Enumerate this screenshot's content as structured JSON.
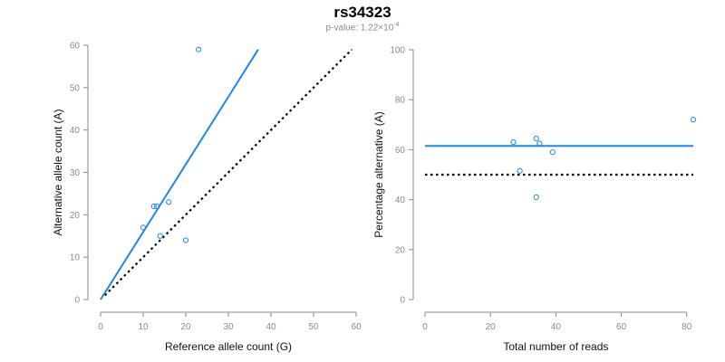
{
  "title": "rs34323",
  "subtitle": {
    "prefix": "p-value: 1.22×10",
    "exponent": "-4"
  },
  "colors": {
    "fit_line": "#1f87e5",
    "point": "#1f87e5",
    "reference_line": "#000000",
    "axis": "#8a8a8a"
  },
  "chart_data": [
    {
      "type": "scatter",
      "xlabel": "Reference allele count (G)",
      "ylabel": "Alternative allele count (A)",
      "xlim": [
        0,
        60
      ],
      "ylim": [
        0,
        60
      ],
      "xticks": [
        0,
        10,
        20,
        30,
        40,
        50,
        60
      ],
      "yticks": [
        0,
        10,
        20,
        30,
        40,
        50,
        60
      ],
      "points": [
        {
          "x": 10,
          "y": 17
        },
        {
          "x": 12.5,
          "y": 22
        },
        {
          "x": 13.2,
          "y": 22
        },
        {
          "x": 14,
          "y": 15
        },
        {
          "x": 16,
          "y": 23
        },
        {
          "x": 20,
          "y": 14
        },
        {
          "x": 23,
          "y": 59
        }
      ],
      "fit_line": {
        "x": [
          0,
          37
        ],
        "y": [
          0,
          59
        ]
      },
      "reference_line": {
        "x": [
          1,
          59
        ],
        "y": [
          1,
          59
        ],
        "style": "dotted"
      }
    },
    {
      "type": "scatter",
      "xlabel": "Total number of reads",
      "ylabel": "Percentage alternative (A)",
      "xlim": [
        0,
        82
      ],
      "ylim": [
        0,
        100
      ],
      "xticks": [
        0,
        20,
        40,
        60,
        80
      ],
      "yticks": [
        0,
        20,
        40,
        60,
        80,
        100
      ],
      "points": [
        {
          "x": 27,
          "y": 63
        },
        {
          "x": 29,
          "y": 51.5
        },
        {
          "x": 34,
          "y": 64.5
        },
        {
          "x": 35,
          "y": 62.5
        },
        {
          "x": 34,
          "y": 41
        },
        {
          "x": 39,
          "y": 59
        },
        {
          "x": 82,
          "y": 72
        }
      ],
      "fit_line": {
        "x": [
          0,
          82
        ],
        "y": [
          61.5,
          61.5
        ]
      },
      "reference_line": {
        "x": [
          0,
          82
        ],
        "y": [
          50,
          50
        ],
        "style": "dotted"
      }
    }
  ]
}
